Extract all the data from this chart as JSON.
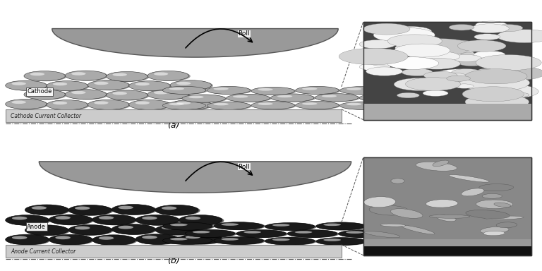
{
  "bg_color": "#ffffff",
  "panel_a": {
    "label": "(a)",
    "electrode_label": "Cathode",
    "collector_label": "Cathode Current Collector",
    "roll_label": "Roll",
    "ball_fc": "#aaaaaa",
    "ball_highlight": "#dddddd",
    "ball_shadow": "#555555",
    "ball_ec": "#333333",
    "collector_fc": "#cccccc",
    "collector_ec": "#888888",
    "roll_fc": "#999999",
    "roll_ec": "#555555",
    "sem_bg": "#555555",
    "sem_particle": "#cccccc",
    "sem_collector": "#aaaaaa"
  },
  "panel_b": {
    "label": "(b)",
    "electrode_label": "Anode",
    "collector_label": "Anode Current Collector",
    "roll_label": "Roll",
    "ball_fc": "#1a1a1a",
    "ball_highlight": "#555555",
    "ball_shadow": "#000000",
    "ball_ec": "#000000",
    "collector_fc": "#cccccc",
    "collector_ec": "#888888",
    "roll_fc": "#999999",
    "roll_ec": "#555555",
    "sem_bg": "#777777",
    "sem_particle": "#999999",
    "sem_collector": "#333333"
  }
}
